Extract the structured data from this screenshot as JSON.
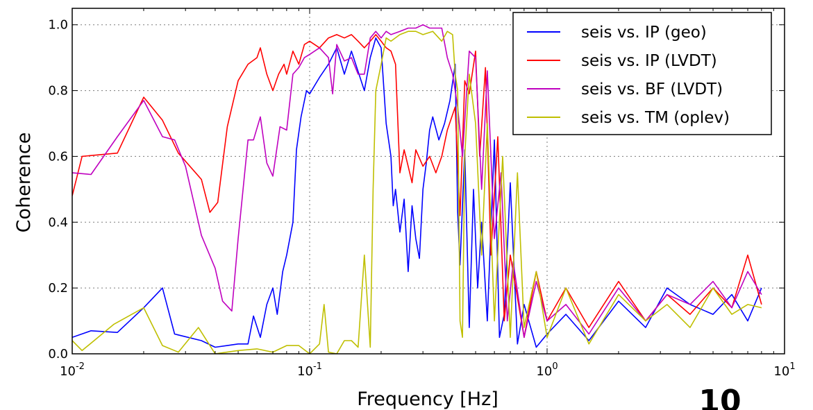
{
  "page_number": "10",
  "chart_data": {
    "type": "line",
    "title": "",
    "xlabel": "Frequency [Hz]",
    "ylabel": "Coherence",
    "x_scale": "log",
    "xlim": [
      0.01,
      10
    ],
    "ylim": [
      0.0,
      1.05
    ],
    "grid": true,
    "legend_position": "top-right",
    "x_ticks": [
      {
        "value": 0.01,
        "base": "10",
        "exp": "-2"
      },
      {
        "value": 0.1,
        "base": "10",
        "exp": "-1"
      },
      {
        "value": 1,
        "base": "10",
        "exp": "0"
      },
      {
        "value": 10,
        "base": "10",
        "exp": "1"
      }
    ],
    "y_ticks": [
      {
        "value": 0.0,
        "label": "0.0"
      },
      {
        "value": 0.2,
        "label": "0.2"
      },
      {
        "value": 0.4,
        "label": "0.4"
      },
      {
        "value": 0.6,
        "label": "0.6"
      },
      {
        "value": 0.8,
        "label": "0.8"
      },
      {
        "value": 1.0,
        "label": "1.0"
      }
    ],
    "series": [
      {
        "name": "seis vs. IP (geo)",
        "color": "#0000ff",
        "points": [
          [
            0.01,
            0.05
          ],
          [
            0.012,
            0.07
          ],
          [
            0.0155,
            0.065
          ],
          [
            0.02,
            0.14
          ],
          [
            0.024,
            0.2
          ],
          [
            0.027,
            0.06
          ],
          [
            0.035,
            0.04
          ],
          [
            0.04,
            0.02
          ],
          [
            0.045,
            0.025
          ],
          [
            0.05,
            0.03
          ],
          [
            0.055,
            0.03
          ],
          [
            0.058,
            0.115
          ],
          [
            0.062,
            0.05
          ],
          [
            0.066,
            0.15
          ],
          [
            0.07,
            0.2
          ],
          [
            0.073,
            0.12
          ],
          [
            0.077,
            0.25
          ],
          [
            0.08,
            0.3
          ],
          [
            0.085,
            0.4
          ],
          [
            0.088,
            0.62
          ],
          [
            0.092,
            0.72
          ],
          [
            0.097,
            0.8
          ],
          [
            0.1,
            0.79
          ],
          [
            0.11,
            0.84
          ],
          [
            0.12,
            0.88
          ],
          [
            0.13,
            0.93
          ],
          [
            0.14,
            0.85
          ],
          [
            0.15,
            0.92
          ],
          [
            0.17,
            0.8
          ],
          [
            0.18,
            0.9
          ],
          [
            0.19,
            0.96
          ],
          [
            0.2,
            0.93
          ],
          [
            0.21,
            0.7
          ],
          [
            0.22,
            0.6
          ],
          [
            0.225,
            0.45
          ],
          [
            0.23,
            0.5
          ],
          [
            0.24,
            0.37
          ],
          [
            0.25,
            0.47
          ],
          [
            0.26,
            0.25
          ],
          [
            0.27,
            0.45
          ],
          [
            0.28,
            0.35
          ],
          [
            0.29,
            0.29
          ],
          [
            0.3,
            0.5
          ],
          [
            0.31,
            0.58
          ],
          [
            0.32,
            0.68
          ],
          [
            0.33,
            0.72
          ],
          [
            0.35,
            0.65
          ],
          [
            0.37,
            0.7
          ],
          [
            0.39,
            0.77
          ],
          [
            0.41,
            0.88
          ],
          [
            0.42,
            0.43
          ],
          [
            0.43,
            0.27
          ],
          [
            0.45,
            0.62
          ],
          [
            0.47,
            0.08
          ],
          [
            0.49,
            0.5
          ],
          [
            0.51,
            0.2
          ],
          [
            0.53,
            0.4
          ],
          [
            0.56,
            0.1
          ],
          [
            0.6,
            0.65
          ],
          [
            0.63,
            0.05
          ],
          [
            0.66,
            0.12
          ],
          [
            0.7,
            0.52
          ],
          [
            0.75,
            0.03
          ],
          [
            0.8,
            0.15
          ],
          [
            0.9,
            0.02
          ],
          [
            1.0,
            0.06
          ],
          [
            1.2,
            0.12
          ],
          [
            1.5,
            0.04
          ],
          [
            2.0,
            0.16
          ],
          [
            2.6,
            0.08
          ],
          [
            3.2,
            0.2
          ],
          [
            4.0,
            0.15
          ],
          [
            5.0,
            0.12
          ],
          [
            6.0,
            0.18
          ],
          [
            7.0,
            0.1
          ],
          [
            8.0,
            0.2
          ]
        ]
      },
      {
        "name": "seis vs. IP (LVDT)",
        "color": "#ff0000",
        "points": [
          [
            0.01,
            0.48
          ],
          [
            0.011,
            0.6
          ],
          [
            0.0155,
            0.61
          ],
          [
            0.02,
            0.78
          ],
          [
            0.024,
            0.71
          ],
          [
            0.028,
            0.61
          ],
          [
            0.035,
            0.53
          ],
          [
            0.038,
            0.43
          ],
          [
            0.041,
            0.46
          ],
          [
            0.045,
            0.69
          ],
          [
            0.05,
            0.83
          ],
          [
            0.055,
            0.88
          ],
          [
            0.06,
            0.9
          ],
          [
            0.062,
            0.93
          ],
          [
            0.066,
            0.85
          ],
          [
            0.07,
            0.8
          ],
          [
            0.074,
            0.85
          ],
          [
            0.078,
            0.88
          ],
          [
            0.08,
            0.85
          ],
          [
            0.085,
            0.92
          ],
          [
            0.09,
            0.88
          ],
          [
            0.095,
            0.94
          ],
          [
            0.1,
            0.95
          ],
          [
            0.11,
            0.93
          ],
          [
            0.12,
            0.96
          ],
          [
            0.13,
            0.97
          ],
          [
            0.14,
            0.96
          ],
          [
            0.15,
            0.97
          ],
          [
            0.16,
            0.95
          ],
          [
            0.17,
            0.93
          ],
          [
            0.18,
            0.95
          ],
          [
            0.19,
            0.97
          ],
          [
            0.2,
            0.95
          ],
          [
            0.21,
            0.93
          ],
          [
            0.22,
            0.92
          ],
          [
            0.23,
            0.88
          ],
          [
            0.24,
            0.55
          ],
          [
            0.25,
            0.62
          ],
          [
            0.26,
            0.57
          ],
          [
            0.27,
            0.52
          ],
          [
            0.28,
            0.62
          ],
          [
            0.3,
            0.57
          ],
          [
            0.32,
            0.6
          ],
          [
            0.34,
            0.55
          ],
          [
            0.36,
            0.6
          ],
          [
            0.38,
            0.68
          ],
          [
            0.41,
            0.75
          ],
          [
            0.43,
            0.42
          ],
          [
            0.45,
            0.83
          ],
          [
            0.47,
            0.79
          ],
          [
            0.5,
            0.92
          ],
          [
            0.52,
            0.6
          ],
          [
            0.55,
            0.87
          ],
          [
            0.58,
            0.3
          ],
          [
            0.62,
            0.66
          ],
          [
            0.66,
            0.1
          ],
          [
            0.7,
            0.3
          ],
          [
            0.8,
            0.05
          ],
          [
            0.9,
            0.25
          ],
          [
            1.0,
            0.1
          ],
          [
            1.2,
            0.2
          ],
          [
            1.5,
            0.08
          ],
          [
            2.0,
            0.22
          ],
          [
            2.6,
            0.1
          ],
          [
            3.2,
            0.18
          ],
          [
            4.0,
            0.12
          ],
          [
            5.0,
            0.2
          ],
          [
            6.0,
            0.14
          ],
          [
            7.0,
            0.3
          ],
          [
            8.0,
            0.15
          ]
        ]
      },
      {
        "name": "seis vs. BF (LVDT)",
        "color": "#bf00bf",
        "points": [
          [
            0.01,
            0.55
          ],
          [
            0.012,
            0.545
          ],
          [
            0.0155,
            0.66
          ],
          [
            0.02,
            0.77
          ],
          [
            0.024,
            0.66
          ],
          [
            0.027,
            0.65
          ],
          [
            0.03,
            0.57
          ],
          [
            0.035,
            0.36
          ],
          [
            0.04,
            0.26
          ],
          [
            0.043,
            0.16
          ],
          [
            0.047,
            0.13
          ],
          [
            0.05,
            0.35
          ],
          [
            0.055,
            0.65
          ],
          [
            0.058,
            0.65
          ],
          [
            0.062,
            0.72
          ],
          [
            0.066,
            0.58
          ],
          [
            0.07,
            0.54
          ],
          [
            0.075,
            0.69
          ],
          [
            0.08,
            0.68
          ],
          [
            0.085,
            0.85
          ],
          [
            0.09,
            0.87
          ],
          [
            0.095,
            0.9
          ],
          [
            0.1,
            0.91
          ],
          [
            0.11,
            0.93
          ],
          [
            0.12,
            0.9
          ],
          [
            0.125,
            0.79
          ],
          [
            0.13,
            0.94
          ],
          [
            0.14,
            0.89
          ],
          [
            0.15,
            0.9
          ],
          [
            0.16,
            0.85
          ],
          [
            0.17,
            0.85
          ],
          [
            0.18,
            0.96
          ],
          [
            0.19,
            0.98
          ],
          [
            0.2,
            0.96
          ],
          [
            0.21,
            0.98
          ],
          [
            0.22,
            0.97
          ],
          [
            0.24,
            0.98
          ],
          [
            0.26,
            0.99
          ],
          [
            0.28,
            0.99
          ],
          [
            0.3,
            1.0
          ],
          [
            0.32,
            0.99
          ],
          [
            0.34,
            0.99
          ],
          [
            0.36,
            0.99
          ],
          [
            0.38,
            0.9
          ],
          [
            0.4,
            0.85
          ],
          [
            0.42,
            0.75
          ],
          [
            0.44,
            0.6
          ],
          [
            0.47,
            0.92
          ],
          [
            0.5,
            0.9
          ],
          [
            0.53,
            0.5
          ],
          [
            0.56,
            0.86
          ],
          [
            0.6,
            0.35
          ],
          [
            0.64,
            0.55
          ],
          [
            0.68,
            0.1
          ],
          [
            0.72,
            0.28
          ],
          [
            0.8,
            0.05
          ],
          [
            0.9,
            0.22
          ],
          [
            1.0,
            0.1
          ],
          [
            1.2,
            0.15
          ],
          [
            1.5,
            0.06
          ],
          [
            2.0,
            0.2
          ],
          [
            2.6,
            0.1
          ],
          [
            3.2,
            0.18
          ],
          [
            4.0,
            0.15
          ],
          [
            5.0,
            0.22
          ],
          [
            6.0,
            0.14
          ],
          [
            7.0,
            0.25
          ],
          [
            8.0,
            0.18
          ]
        ]
      },
      {
        "name": "seis vs. TM (oplev)",
        "color": "#bfbf00",
        "points": [
          [
            0.01,
            0.04
          ],
          [
            0.011,
            0.01
          ],
          [
            0.015,
            0.09
          ],
          [
            0.02,
            0.14
          ],
          [
            0.024,
            0.025
          ],
          [
            0.028,
            0.005
          ],
          [
            0.034,
            0.08
          ],
          [
            0.04,
            0.0
          ],
          [
            0.05,
            0.01
          ],
          [
            0.06,
            0.015
          ],
          [
            0.07,
            0.005
          ],
          [
            0.08,
            0.025
          ],
          [
            0.09,
            0.025
          ],
          [
            0.1,
            0.0
          ],
          [
            0.11,
            0.03
          ],
          [
            0.115,
            0.15
          ],
          [
            0.12,
            0.005
          ],
          [
            0.13,
            0.0
          ],
          [
            0.14,
            0.04
          ],
          [
            0.15,
            0.04
          ],
          [
            0.16,
            0.02
          ],
          [
            0.17,
            0.3
          ],
          [
            0.18,
            0.02
          ],
          [
            0.185,
            0.5
          ],
          [
            0.19,
            0.8
          ],
          [
            0.2,
            0.88
          ],
          [
            0.21,
            0.96
          ],
          [
            0.22,
            0.95
          ],
          [
            0.24,
            0.97
          ],
          [
            0.26,
            0.98
          ],
          [
            0.28,
            0.98
          ],
          [
            0.3,
            0.97
          ],
          [
            0.33,
            0.98
          ],
          [
            0.36,
            0.95
          ],
          [
            0.38,
            0.98
          ],
          [
            0.4,
            0.97
          ],
          [
            0.41,
            0.85
          ],
          [
            0.42,
            0.8
          ],
          [
            0.43,
            0.1
          ],
          [
            0.44,
            0.05
          ],
          [
            0.45,
            0.6
          ],
          [
            0.47,
            0.85
          ],
          [
            0.5,
            0.7
          ],
          [
            0.53,
            0.3
          ],
          [
            0.56,
            0.7
          ],
          [
            0.6,
            0.1
          ],
          [
            0.65,
            0.6
          ],
          [
            0.7,
            0.05
          ],
          [
            0.75,
            0.55
          ],
          [
            0.8,
            0.08
          ],
          [
            0.9,
            0.25
          ],
          [
            1.0,
            0.05
          ],
          [
            1.2,
            0.2
          ],
          [
            1.5,
            0.03
          ],
          [
            2.0,
            0.18
          ],
          [
            2.6,
            0.1
          ],
          [
            3.2,
            0.15
          ],
          [
            4.0,
            0.08
          ],
          [
            5.0,
            0.2
          ],
          [
            6.0,
            0.12
          ],
          [
            7.0,
            0.15
          ],
          [
            8.0,
            0.14
          ]
        ]
      }
    ]
  }
}
